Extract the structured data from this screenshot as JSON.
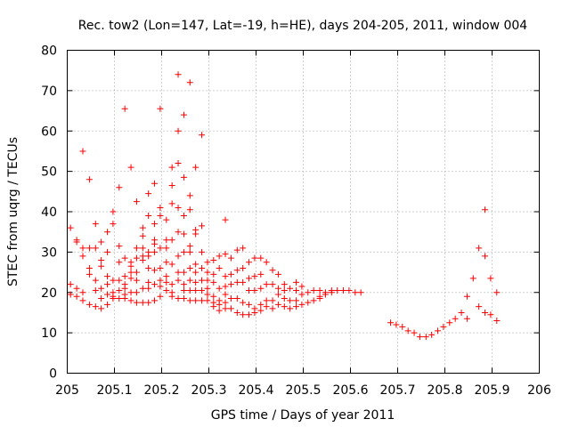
{
  "chart_data": {
    "type": "scatter",
    "title": "Rec. tow2 (Lon=147, Lat=-19, h=HE), days 204-205, 2011, window 004",
    "xlabel": "GPS time / Days of year 2011",
    "ylabel": "STEC from uqrg / TECUs",
    "xlim": [
      205,
      206
    ],
    "ylim": [
      0,
      80
    ],
    "x_ticks": [
      205,
      205.1,
      205.2,
      205.3,
      205.4,
      205.5,
      205.6,
      205.7,
      205.8,
      205.9,
      206
    ],
    "x_tick_labels": [
      "205",
      "205.1",
      "205.2",
      "205.3",
      "205.4",
      "205.5",
      "205.6",
      "205.7",
      "205.8",
      "205.9",
      "206"
    ],
    "y_ticks": [
      0,
      10,
      20,
      30,
      40,
      50,
      60,
      70,
      80
    ],
    "y_tick_labels": [
      "0",
      "10",
      "20",
      "30",
      "40",
      "50",
      "60",
      "70",
      "80"
    ],
    "grid": true,
    "marker": "plus",
    "color": "#ff0000",
    "points": [
      [
        205.007,
        36
      ],
      [
        205.007,
        22
      ],
      [
        205.007,
        19.5
      ],
      [
        205.02,
        33
      ],
      [
        205.02,
        32.5
      ],
      [
        205.02,
        21
      ],
      [
        205.02,
        19
      ],
      [
        205.033,
        55
      ],
      [
        205.033,
        31
      ],
      [
        205.033,
        29
      ],
      [
        205.033,
        20
      ],
      [
        205.033,
        18
      ],
      [
        205.047,
        48
      ],
      [
        205.047,
        31
      ],
      [
        205.047,
        26
      ],
      [
        205.047,
        24.5
      ],
      [
        205.047,
        17
      ],
      [
        205.06,
        37
      ],
      [
        205.06,
        31
      ],
      [
        205.06,
        23
      ],
      [
        205.06,
        20.5
      ],
      [
        205.06,
        16.5
      ],
      [
        205.072,
        32.5
      ],
      [
        205.072,
        28
      ],
      [
        205.072,
        26.5
      ],
      [
        205.072,
        21
      ],
      [
        205.072,
        18.5
      ],
      [
        205.072,
        16
      ],
      [
        205.085,
        35
      ],
      [
        205.085,
        30
      ],
      [
        205.085,
        24
      ],
      [
        205.085,
        22
      ],
      [
        205.085,
        19.5
      ],
      [
        205.085,
        17
      ],
      [
        205.097,
        40
      ],
      [
        205.097,
        37
      ],
      [
        205.097,
        23
      ],
      [
        205.097,
        20
      ],
      [
        205.097,
        19
      ],
      [
        205.097,
        18.5
      ],
      [
        205.11,
        46
      ],
      [
        205.11,
        31.5
      ],
      [
        205.11,
        27.5
      ],
      [
        205.11,
        23
      ],
      [
        205.11,
        20.5
      ],
      [
        205.11,
        18.5
      ],
      [
        205.122,
        65.5
      ],
      [
        205.122,
        28.5
      ],
      [
        205.122,
        24
      ],
      [
        205.122,
        22
      ],
      [
        205.122,
        21
      ],
      [
        205.122,
        19.5
      ],
      [
        205.122,
        18.5
      ],
      [
        205.135,
        51
      ],
      [
        205.135,
        27.5
      ],
      [
        205.135,
        26.5
      ],
      [
        205.135,
        25
      ],
      [
        205.135,
        23.5
      ],
      [
        205.135,
        20
      ],
      [
        205.135,
        18
      ],
      [
        205.147,
        42.5
      ],
      [
        205.147,
        31
      ],
      [
        205.147,
        28.5
      ],
      [
        205.147,
        25
      ],
      [
        205.147,
        23
      ],
      [
        205.147,
        20
      ],
      [
        205.147,
        17.5
      ],
      [
        205.16,
        36
      ],
      [
        205.16,
        34
      ],
      [
        205.16,
        31
      ],
      [
        205.16,
        29
      ],
      [
        205.16,
        28
      ],
      [
        205.16,
        21
      ],
      [
        205.16,
        17.5
      ],
      [
        205.172,
        44.5
      ],
      [
        205.172,
        39
      ],
      [
        205.172,
        30
      ],
      [
        205.172,
        29
      ],
      [
        205.172,
        26
      ],
      [
        205.172,
        22.5
      ],
      [
        205.172,
        21
      ],
      [
        205.172,
        17.5
      ],
      [
        205.185,
        47
      ],
      [
        205.185,
        37
      ],
      [
        205.185,
        33
      ],
      [
        205.185,
        32
      ],
      [
        205.185,
        30
      ],
      [
        205.185,
        25.5
      ],
      [
        205.185,
        22
      ],
      [
        205.185,
        18
      ],
      [
        205.197,
        65.5
      ],
      [
        205.197,
        41
      ],
      [
        205.197,
        39
      ],
      [
        205.197,
        31
      ],
      [
        205.197,
        26
      ],
      [
        205.197,
        23
      ],
      [
        205.197,
        21.5
      ],
      [
        205.197,
        19
      ],
      [
        205.21,
        38
      ],
      [
        205.21,
        33
      ],
      [
        205.21,
        31
      ],
      [
        205.21,
        27.5
      ],
      [
        205.21,
        24
      ],
      [
        205.21,
        22.5
      ],
      [
        205.21,
        20.5
      ],
      [
        205.222,
        51
      ],
      [
        205.222,
        46.5
      ],
      [
        205.222,
        42
      ],
      [
        205.222,
        33
      ],
      [
        205.222,
        27
      ],
      [
        205.222,
        22
      ],
      [
        205.222,
        20
      ],
      [
        205.222,
        19
      ],
      [
        205.235,
        74
      ],
      [
        205.235,
        60
      ],
      [
        205.235,
        52
      ],
      [
        205.235,
        41
      ],
      [
        205.235,
        35
      ],
      [
        205.235,
        29
      ],
      [
        205.235,
        25
      ],
      [
        205.235,
        23
      ],
      [
        205.235,
        18.5
      ],
      [
        205.247,
        64
      ],
      [
        205.247,
        48.5
      ],
      [
        205.247,
        39
      ],
      [
        205.247,
        34.5
      ],
      [
        205.247,
        30
      ],
      [
        205.247,
        25
      ],
      [
        205.247,
        22
      ],
      [
        205.247,
        20.5
      ],
      [
        205.247,
        18.5
      ],
      [
        205.26,
        72
      ],
      [
        205.26,
        44
      ],
      [
        205.26,
        40.5
      ],
      [
        205.26,
        31.5
      ],
      [
        205.26,
        30
      ],
      [
        205.26,
        26
      ],
      [
        205.26,
        23
      ],
      [
        205.26,
        20.5
      ],
      [
        205.26,
        18
      ],
      [
        205.272,
        51
      ],
      [
        205.272,
        35.5
      ],
      [
        205.272,
        34.5
      ],
      [
        205.272,
        27
      ],
      [
        205.272,
        25
      ],
      [
        205.272,
        22.5
      ],
      [
        205.272,
        20.5
      ],
      [
        205.272,
        18
      ],
      [
        205.285,
        59
      ],
      [
        205.285,
        36.5
      ],
      [
        205.285,
        30
      ],
      [
        205.285,
        26
      ],
      [
        205.285,
        23
      ],
      [
        205.285,
        20.5
      ],
      [
        205.285,
        18
      ],
      [
        205.297,
        27.5
      ],
      [
        205.297,
        25
      ],
      [
        205.297,
        23
      ],
      [
        205.297,
        21
      ],
      [
        205.297,
        19.5
      ],
      [
        205.297,
        18
      ],
      [
        205.31,
        28
      ],
      [
        205.31,
        24.5
      ],
      [
        205.31,
        22.5
      ],
      [
        205.31,
        19
      ],
      [
        205.31,
        17.5
      ],
      [
        205.31,
        16.5
      ],
      [
        205.322,
        29
      ],
      [
        205.322,
        26
      ],
      [
        205.322,
        21
      ],
      [
        205.322,
        18
      ],
      [
        205.322,
        17
      ],
      [
        205.322,
        15.5
      ],
      [
        205.335,
        38
      ],
      [
        205.335,
        29.5
      ],
      [
        205.335,
        24
      ],
      [
        205.335,
        21.5
      ],
      [
        205.335,
        19.5
      ],
      [
        205.335,
        17.5
      ],
      [
        205.335,
        16
      ],
      [
        205.347,
        28.5
      ],
      [
        205.347,
        24.5
      ],
      [
        205.347,
        22
      ],
      [
        205.347,
        18.5
      ],
      [
        205.347,
        16
      ],
      [
        205.36,
        30.5
      ],
      [
        205.36,
        25.5
      ],
      [
        205.36,
        22.5
      ],
      [
        205.36,
        18.5
      ],
      [
        205.36,
        15
      ],
      [
        205.372,
        31
      ],
      [
        205.372,
        26
      ],
      [
        205.372,
        22.5
      ],
      [
        205.372,
        17.5
      ],
      [
        205.372,
        14.5
      ],
      [
        205.385,
        27.5
      ],
      [
        205.385,
        23.5
      ],
      [
        205.385,
        20.5
      ],
      [
        205.385,
        17
      ],
      [
        205.385,
        14.5
      ],
      [
        205.397,
        28.5
      ],
      [
        205.397,
        24
      ],
      [
        205.397,
        20.5
      ],
      [
        205.397,
        16
      ],
      [
        205.397,
        15
      ],
      [
        205.41,
        28.5
      ],
      [
        205.41,
        24.5
      ],
      [
        205.41,
        21
      ],
      [
        205.41,
        17
      ],
      [
        205.41,
        15.5
      ],
      [
        205.422,
        27.5
      ],
      [
        205.422,
        22
      ],
      [
        205.422,
        18
      ],
      [
        205.422,
        16.5
      ],
      [
        205.435,
        25.5
      ],
      [
        205.435,
        22
      ],
      [
        205.435,
        18
      ],
      [
        205.435,
        16
      ],
      [
        205.447,
        24.5
      ],
      [
        205.447,
        21
      ],
      [
        205.447,
        19.5
      ],
      [
        205.447,
        17
      ],
      [
        205.46,
        22
      ],
      [
        205.46,
        20.5
      ],
      [
        205.46,
        18.5
      ],
      [
        205.46,
        16.5
      ],
      [
        205.472,
        21
      ],
      [
        205.472,
        18
      ],
      [
        205.472,
        16
      ],
      [
        205.485,
        22.5
      ],
      [
        205.485,
        20.5
      ],
      [
        205.485,
        18
      ],
      [
        205.485,
        16.5
      ],
      [
        205.497,
        21.5
      ],
      [
        205.497,
        19.5
      ],
      [
        205.497,
        17
      ],
      [
        205.51,
        20
      ],
      [
        205.51,
        17.5
      ],
      [
        205.522,
        20.5
      ],
      [
        205.522,
        18
      ],
      [
        205.535,
        20.5
      ],
      [
        205.535,
        19
      ],
      [
        205.535,
        18.5
      ],
      [
        205.547,
        20
      ],
      [
        205.547,
        19.5
      ],
      [
        205.56,
        20.5
      ],
      [
        205.56,
        20
      ],
      [
        205.572,
        20.5
      ],
      [
        205.585,
        20.5
      ],
      [
        205.597,
        20.5
      ],
      [
        205.61,
        20
      ],
      [
        205.622,
        20
      ],
      [
        205.685,
        12.5
      ],
      [
        205.697,
        12
      ],
      [
        205.71,
        11.5
      ],
      [
        205.722,
        10.5
      ],
      [
        205.735,
        10
      ],
      [
        205.747,
        9
      ],
      [
        205.76,
        9
      ],
      [
        205.772,
        9.5
      ],
      [
        205.785,
        10.5
      ],
      [
        205.797,
        11.5
      ],
      [
        205.81,
        12.5
      ],
      [
        205.822,
        13.5
      ],
      [
        205.835,
        15
      ],
      [
        205.847,
        19
      ],
      [
        205.847,
        13.5
      ],
      [
        205.86,
        23.5
      ],
      [
        205.872,
        31
      ],
      [
        205.872,
        16.5
      ],
      [
        205.885,
        40.5
      ],
      [
        205.885,
        29
      ],
      [
        205.885,
        15
      ],
      [
        205.897,
        23.5
      ],
      [
        205.897,
        14.5
      ],
      [
        205.91,
        20
      ],
      [
        205.91,
        13
      ]
    ]
  }
}
